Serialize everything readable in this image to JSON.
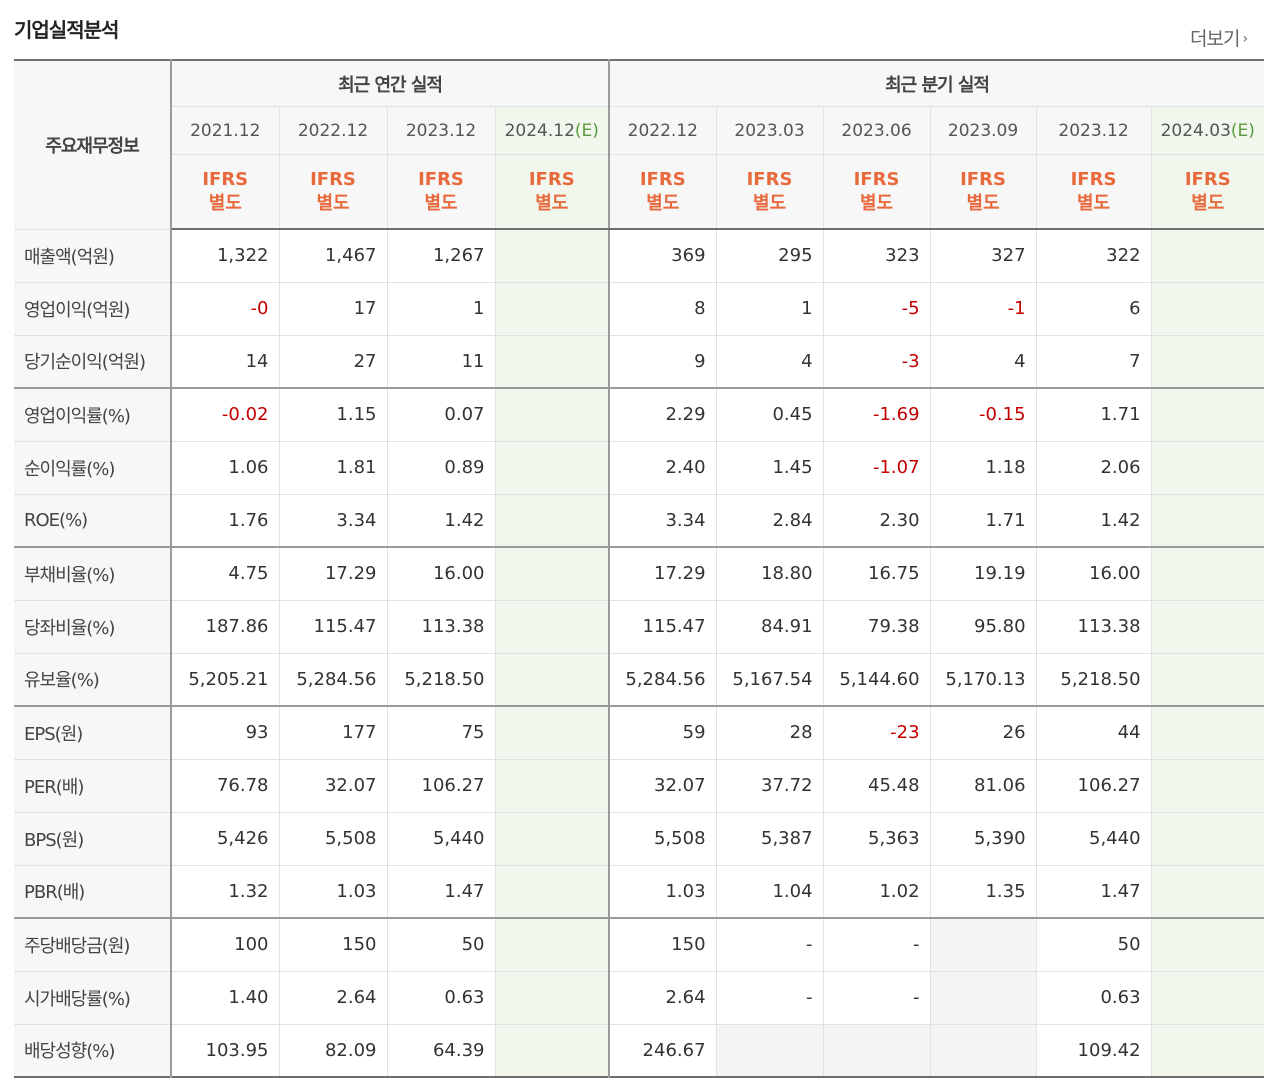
{
  "title": "기업실적분석",
  "more": {
    "label": "더보기",
    "icon": "chevron-right-icon"
  },
  "table": {
    "corner_label": "주요재무정보",
    "annual_header": "최근 연간 실적",
    "quarter_header": "최근 분기 실적",
    "annual_periods": [
      {
        "date": "2021.12",
        "estimate": "",
        "std": "IFRS",
        "basis": "별도"
      },
      {
        "date": "2022.12",
        "estimate": "",
        "std": "IFRS",
        "basis": "별도"
      },
      {
        "date": "2023.12",
        "estimate": "",
        "std": "IFRS",
        "basis": "별도"
      },
      {
        "date": "2024.12",
        "estimate": "(E)",
        "std": "IFRS",
        "basis": "별도"
      }
    ],
    "quarter_periods": [
      {
        "date": "2022.12",
        "estimate": "",
        "std": "IFRS",
        "basis": "별도"
      },
      {
        "date": "2023.03",
        "estimate": "",
        "std": "IFRS",
        "basis": "별도"
      },
      {
        "date": "2023.06",
        "estimate": "",
        "std": "IFRS",
        "basis": "별도"
      },
      {
        "date": "2023.09",
        "estimate": "",
        "std": "IFRS",
        "basis": "별도"
      },
      {
        "date": "2023.12",
        "estimate": "",
        "std": "IFRS",
        "basis": "별도"
      },
      {
        "date": "2024.03",
        "estimate": "(E)",
        "std": "IFRS",
        "basis": "별도"
      }
    ],
    "rows": [
      {
        "label": "매출액(억원)",
        "annual": [
          "1,322",
          "1,467",
          "1,267",
          ""
        ],
        "quarter": [
          "369",
          "295",
          "323",
          "327",
          "322",
          ""
        ]
      },
      {
        "label": "영업이익(억원)",
        "annual": [
          "-0",
          "17",
          "1",
          ""
        ],
        "quarter": [
          "8",
          "1",
          "-5",
          "-1",
          "6",
          ""
        ]
      },
      {
        "label": "당기순이익(억원)",
        "annual": [
          "14",
          "27",
          "11",
          ""
        ],
        "quarter": [
          "9",
          "4",
          "-3",
          "4",
          "7",
          ""
        ]
      },
      {
        "label": "영업이익률(%)",
        "annual": [
          "-0.02",
          "1.15",
          "0.07",
          ""
        ],
        "quarter": [
          "2.29",
          "0.45",
          "-1.69",
          "-0.15",
          "1.71",
          ""
        ]
      },
      {
        "label": "순이익률(%)",
        "annual": [
          "1.06",
          "1.81",
          "0.89",
          ""
        ],
        "quarter": [
          "2.40",
          "1.45",
          "-1.07",
          "1.18",
          "2.06",
          ""
        ]
      },
      {
        "label": "ROE(%)",
        "annual": [
          "1.76",
          "3.34",
          "1.42",
          ""
        ],
        "quarter": [
          "3.34",
          "2.84",
          "2.30",
          "1.71",
          "1.42",
          ""
        ]
      },
      {
        "label": "부채비율(%)",
        "annual": [
          "4.75",
          "17.29",
          "16.00",
          ""
        ],
        "quarter": [
          "17.29",
          "18.80",
          "16.75",
          "19.19",
          "16.00",
          ""
        ]
      },
      {
        "label": "당좌비율(%)",
        "annual": [
          "187.86",
          "115.47",
          "113.38",
          ""
        ],
        "quarter": [
          "115.47",
          "84.91",
          "79.38",
          "95.80",
          "113.38",
          ""
        ]
      },
      {
        "label": "유보율(%)",
        "annual": [
          "5,205.21",
          "5,284.56",
          "5,218.50",
          ""
        ],
        "quarter": [
          "5,284.56",
          "5,167.54",
          "5,144.60",
          "5,170.13",
          "5,218.50",
          ""
        ]
      },
      {
        "label": "EPS(원)",
        "annual": [
          "93",
          "177",
          "75",
          ""
        ],
        "quarter": [
          "59",
          "28",
          "-23",
          "26",
          "44",
          ""
        ]
      },
      {
        "label": "PER(배)",
        "annual": [
          "76.78",
          "32.07",
          "106.27",
          ""
        ],
        "quarter": [
          "32.07",
          "37.72",
          "45.48",
          "81.06",
          "106.27",
          ""
        ]
      },
      {
        "label": "BPS(원)",
        "annual": [
          "5,426",
          "5,508",
          "5,440",
          ""
        ],
        "quarter": [
          "5,508",
          "5,387",
          "5,363",
          "5,390",
          "5,440",
          ""
        ]
      },
      {
        "label": "PBR(배)",
        "annual": [
          "1.32",
          "1.03",
          "1.47",
          ""
        ],
        "quarter": [
          "1.03",
          "1.04",
          "1.02",
          "1.35",
          "1.47",
          ""
        ]
      },
      {
        "label": "주당배당금(원)",
        "annual": [
          "100",
          "150",
          "50",
          ""
        ],
        "quarter": [
          "150",
          "-",
          "-",
          "",
          "50",
          ""
        ]
      },
      {
        "label": "시가배당률(%)",
        "annual": [
          "1.40",
          "2.64",
          "0.63",
          ""
        ],
        "quarter": [
          "2.64",
          "-",
          "-",
          "",
          "0.63",
          ""
        ]
      },
      {
        "label": "배당성향(%)",
        "annual": [
          "103.95",
          "82.09",
          "64.39",
          ""
        ],
        "quarter": [
          "246.67",
          "",
          "",
          "",
          "109.42",
          ""
        ]
      }
    ]
  },
  "colors": {
    "ifrs_orange": "#e8693c",
    "negative_red": "#c40000",
    "estimate_bg": "#f1f7ec",
    "estimate_mark": "#5a9a3c",
    "header_bg": "#f7f7f7"
  }
}
